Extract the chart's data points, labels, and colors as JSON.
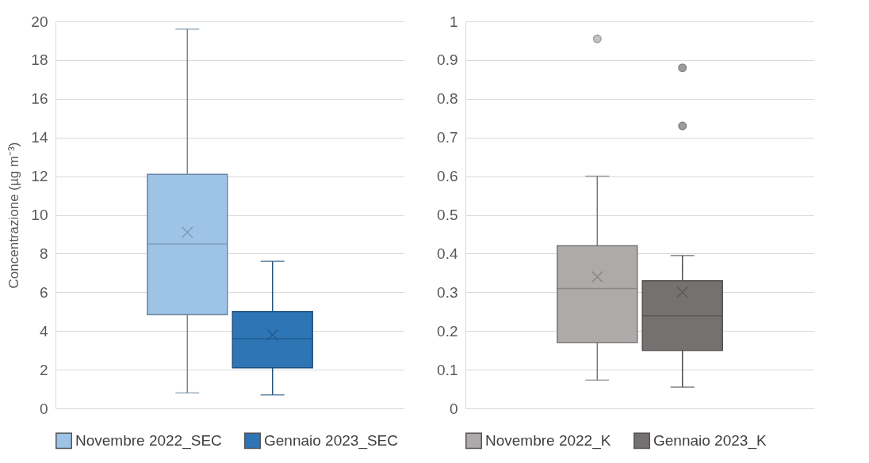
{
  "chart_data": [
    {
      "type": "box",
      "ylabel": "Concentrazione (µg m⁻³)",
      "categories": [
        null
      ],
      "ylim": [
        0,
        20
      ],
      "yticks": [
        0,
        2,
        4,
        6,
        8,
        10,
        12,
        14,
        16,
        18,
        20
      ],
      "grid": "y",
      "legend": "bottom",
      "tick_labels": "y",
      "series": [
        {
          "name": "Novembre 2022_SEC",
          "color": "#9dc3e6",
          "boxes": [
            {
              "low": 0.8,
              "q1": 4.85,
              "median": 8.5,
              "q3": 12.1,
              "high": 19.6,
              "mean": 9.1
            }
          ]
        },
        {
          "name": "Gennaio 2023_SEC",
          "color": "#2e75b6",
          "boxes": [
            {
              "low": 0.7,
              "q1": 2.1,
              "median": 3.6,
              "q3": 5.0,
              "high": 7.6,
              "mean": 3.8
            }
          ]
        }
      ]
    },
    {
      "type": "box",
      "categories": [
        null
      ],
      "ylim": [
        0,
        1
      ],
      "yticks": [
        0,
        0.1,
        0.2,
        0.3,
        0.4,
        0.5,
        0.6,
        0.7,
        0.8,
        0.9,
        1
      ],
      "grid": "y",
      "legend": "bottom",
      "tick_labels": "y",
      "series": [
        {
          "name": "Novembre 2022_K",
          "color": "#aeaaaa",
          "boxes": [
            {
              "low": 0.073,
              "q1": 0.17,
              "median": 0.31,
              "q3": 0.42,
              "high": 0.6,
              "mean": 0.34,
              "outliers": [
                0.955
              ]
            }
          ]
        },
        {
          "name": "Gennaio 2023_K",
          "color": "#757171",
          "boxes": [
            {
              "low": 0.055,
              "q1": 0.15,
              "median": 0.24,
              "q3": 0.33,
              "high": 0.395,
              "mean": 0.3,
              "outliers": [
                0.88,
                0.73
              ]
            }
          ]
        }
      ]
    }
  ]
}
